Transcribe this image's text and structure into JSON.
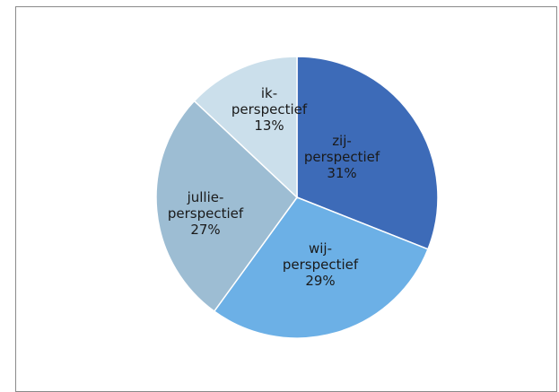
{
  "chart_data": {
    "type": "pie",
    "title": "",
    "slices": [
      {
        "label_lines": [
          "zij-",
          "perspectief"
        ],
        "value": 31,
        "percent_label": "31%",
        "color": "#3D6BB8"
      },
      {
        "label_lines": [
          "wij-",
          "perspectief"
        ],
        "value": 29,
        "percent_label": "29%",
        "color": "#6CB0E6"
      },
      {
        "label_lines": [
          "jullie-",
          "perspectief"
        ],
        "value": 27,
        "percent_label": "27%",
        "color": "#9DBDD3"
      },
      {
        "label_lines": [
          "ik-",
          "perspectief"
        ],
        "value": 13,
        "percent_label": "13%",
        "color": "#CBDFEB"
      }
    ],
    "legend": "none"
  }
}
